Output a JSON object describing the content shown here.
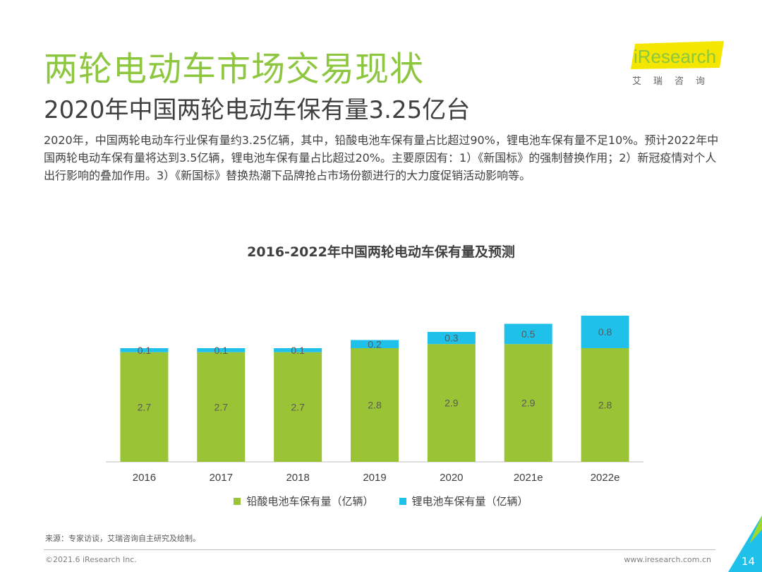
{
  "slide": {
    "title": "两轮电动车市场交易现状",
    "subtitle": "2020年中国两轮电动车保有量3.25亿台",
    "body": "2020年，中国两轮电动车行业保有量约3.25亿辆，其中，铅酸电池车保有量占比超过90%，锂电池车保有量不足10%。预计2022年中国两轮电动车保有量将达到3.5亿辆，锂电池车保有量占比超过20%。主要原因有：1）《新国标》的强制替换作用；2）新冠疫情对个人出行影响的叠加作用。3）《新国标》替换热潮下品牌抢占市场份额进行的大力度促销活动影响等。",
    "source": "来源：专家访谈，艾瑞咨询自主研究及绘制。",
    "copyright": "©2021.6 iResearch Inc.",
    "website": "www.iresearch.com.cn",
    "page_number": "14"
  },
  "logo": {
    "brand": "iResearch",
    "cn": "艾瑞咨询",
    "colors": {
      "green": "#8dc63f",
      "yellow": "#f5e600"
    }
  },
  "chart_data": {
    "type": "bar",
    "stacked": true,
    "title": "2016-2022年中国两轮电动车保有量及预测",
    "categories": [
      "2016",
      "2017",
      "2018",
      "2019",
      "2020",
      "2021e",
      "2022e"
    ],
    "series": [
      {
        "name": "铅酸电池车保有量（亿辆）",
        "color": "#9ac435",
        "values": [
          2.7,
          2.7,
          2.7,
          2.8,
          2.9,
          2.9,
          2.8
        ]
      },
      {
        "name": "锂电池车保有量（亿辆）",
        "color": "#1fc1ea",
        "values": [
          0.1,
          0.1,
          0.1,
          0.2,
          0.3,
          0.5,
          0.8
        ]
      }
    ],
    "ylim": [
      0,
      4.0
    ],
    "xlabel": "",
    "ylabel": "",
    "legend": "bottom",
    "grid": false
  },
  "colors": {
    "title_green": "#8dc63f",
    "corner_accent": "#1fc1ea",
    "corner_accent_light": "#a0d82c"
  }
}
